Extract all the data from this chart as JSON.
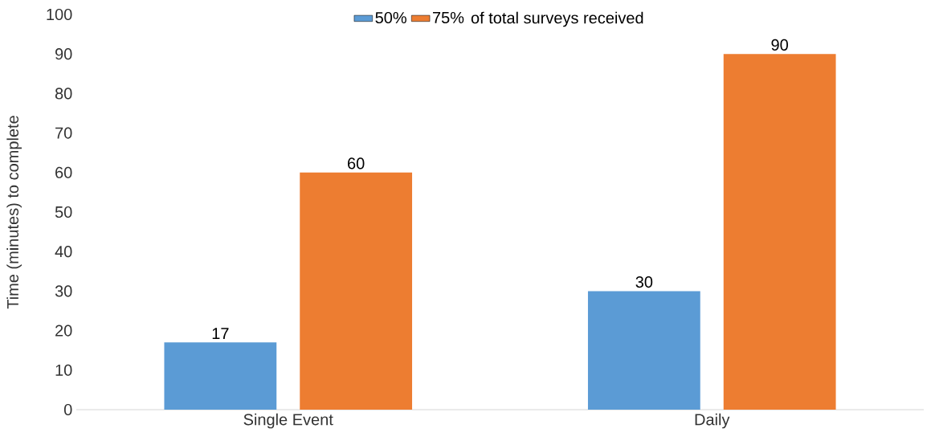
{
  "chart_data": {
    "type": "bar",
    "ylabel": "Time (minutes) to complete",
    "legend_title": "of total surveys received",
    "categories": [
      "Single Event",
      "Daily"
    ],
    "series": [
      {
        "name": "50%",
        "color": "#5b9bd5",
        "values": [
          17,
          30
        ]
      },
      {
        "name": "75%",
        "color": "#ed7d31",
        "values": [
          60,
          90
        ]
      }
    ],
    "ylim": [
      0,
      100
    ],
    "yticks": [
      0,
      10,
      20,
      30,
      40,
      50,
      60,
      70,
      80,
      90,
      100
    ],
    "data_labels": true,
    "legend": "top",
    "grid": false
  }
}
